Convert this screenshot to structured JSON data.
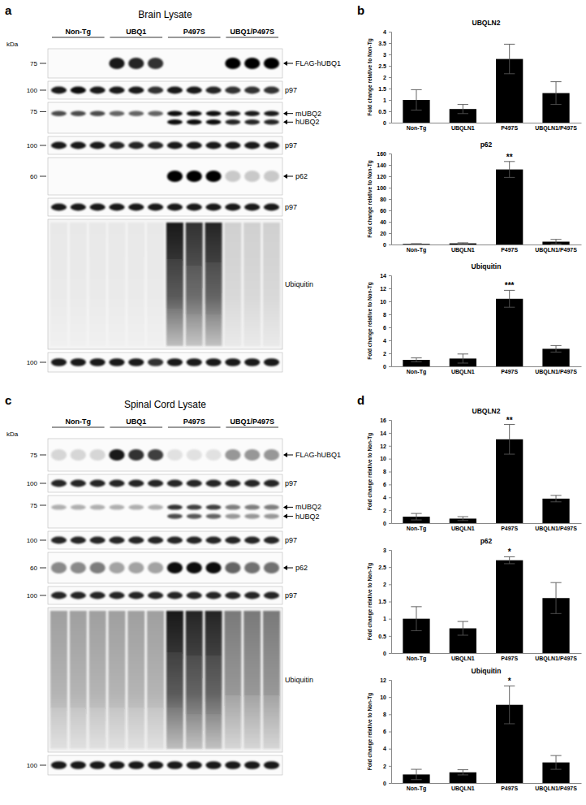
{
  "chart_data": [
    {
      "type": "bar",
      "title": "UBQLN2",
      "categories": [
        "Non-Tg",
        "UBQLN1",
        "P497S",
        "UBQLN1/P497S"
      ],
      "values": [
        1.0,
        0.6,
        2.8,
        1.3
      ],
      "errors": [
        0.45,
        0.2,
        0.65,
        0.5
      ],
      "color": "#000000",
      "ylim": [
        0,
        4
      ],
      "yticks": [
        0,
        0.5,
        1,
        1.5,
        2,
        2.5,
        3,
        3.5,
        4
      ],
      "y_label": "Fold change relative to Non-Tg"
    },
    {
      "type": "bar",
      "title": "p62",
      "categories": [
        "Non-Tg",
        "UBQLN1",
        "P497S",
        "UBQLN1/P497S"
      ],
      "values": [
        1,
        2,
        132,
        5
      ],
      "errors": [
        0.5,
        1,
        14,
        4
      ],
      "color": "#000000",
      "ylim": [
        0,
        160
      ],
      "yticks": [
        0,
        20,
        40,
        60,
        80,
        100,
        120,
        140,
        160
      ],
      "y_label": "Fold change relative to Non-Tg",
      "annotations": [
        {
          "x": "P497S",
          "text": "**"
        }
      ]
    },
    {
      "type": "bar",
      "title": "Ubiquitin",
      "categories": [
        "Non-Tg",
        "UBQLN1",
        "P497S",
        "UBQLN1/P497S"
      ],
      "values": [
        1.0,
        1.2,
        10.4,
        2.7
      ],
      "errors": [
        0.3,
        0.7,
        1.3,
        0.5
      ],
      "color": "#000000",
      "ylim": [
        0,
        14
      ],
      "yticks": [
        0,
        2,
        4,
        6,
        8,
        10,
        12,
        14
      ],
      "y_label": "Fold change relative to Non-Tg",
      "annotations": [
        {
          "x": "P497S",
          "text": "***"
        }
      ]
    },
    {
      "type": "bar",
      "title": "UBQLN2",
      "categories": [
        "Non-Tg",
        "UBQLN1",
        "P497S",
        "UBQLN1/P497S"
      ],
      "values": [
        1.0,
        0.7,
        13,
        3.8
      ],
      "errors": [
        0.5,
        0.3,
        2.3,
        0.5
      ],
      "color": "#000000",
      "ylim": [
        0,
        16
      ],
      "yticks": [
        0,
        2,
        4,
        6,
        8,
        10,
        12,
        14,
        16
      ],
      "y_label": "Fold change relative to Non-Tg",
      "annotations": [
        {
          "x": "P497S",
          "text": "**"
        }
      ]
    },
    {
      "type": "bar",
      "title": "p62",
      "categories": [
        "Non-Tg",
        "UBQLN1",
        "P497S",
        "UBQLN1/P497S"
      ],
      "values": [
        1.0,
        0.72,
        2.7,
        1.6
      ],
      "errors": [
        0.35,
        0.2,
        0.1,
        0.45
      ],
      "color": "#000000",
      "ylim": [
        0,
        3
      ],
      "yticks": [
        0,
        0.5,
        1,
        1.5,
        2,
        2.5,
        3
      ],
      "y_label": "Fold change relative to Non-Tg",
      "annotations": [
        {
          "x": "P497S",
          "text": "*"
        }
      ]
    },
    {
      "type": "bar",
      "title": "Ubiquitin",
      "categories": [
        "Non-Tg",
        "UBQLN1",
        "P497S",
        "UBQLN1/P497S"
      ],
      "values": [
        1.0,
        1.25,
        9.1,
        2.4
      ],
      "errors": [
        0.6,
        0.3,
        2.2,
        0.8
      ],
      "color": "#000000",
      "ylim": [
        0,
        12
      ],
      "yticks": [
        0,
        2,
        4,
        6,
        8,
        10,
        12
      ],
      "y_label": "Fold change relative to Non-Tg",
      "annotations": [
        {
          "x": "P497S",
          "text": "*"
        }
      ]
    }
  ],
  "panel_labels": [
    "a",
    "b",
    "c",
    "d"
  ],
  "blots": [
    {
      "title": "Brain Lysate",
      "unit": "kDa",
      "groups": [
        "Non-Tg",
        "UBQ1",
        "P497S",
        "UBQ1/P497S"
      ],
      "rows": [
        {
          "type": "band",
          "marker": 75,
          "label": "FLAG-hUBQ1",
          "bands": [
            0,
            0,
            0,
            0.9,
            0.85,
            0.8,
            0,
            0,
            0,
            1,
            1,
            1
          ]
        },
        {
          "type": "band",
          "marker": 100,
          "label": "p97",
          "bands": [
            0.9,
            0.95,
            0.9,
            0.9,
            0.9,
            0.8,
            0.9,
            0.9,
            0.85,
            0.8,
            0.8,
            0.8
          ]
        },
        {
          "type": "doublet",
          "marker": 75,
          "labels": [
            "mUBQ2",
            "hUBQ2"
          ],
          "bands": [
            [
              0.7,
              0.7,
              0.7,
              0.6,
              0.6,
              0.6,
              0.95,
              0.95,
              0.95,
              0.9,
              0.9,
              0.9
            ],
            [
              0,
              0,
              0,
              0,
              0,
              0,
              0.95,
              0.95,
              0.95,
              0.85,
              0.85,
              0.85
            ]
          ]
        },
        {
          "type": "band",
          "marker": 100,
          "label": "p97",
          "bands": [
            0.9,
            0.9,
            0.9,
            0.85,
            0.85,
            0.85,
            0.9,
            0.9,
            0.9,
            0.9,
            0.9,
            0.9
          ]
        },
        {
          "type": "band",
          "marker": 60,
          "label": "p62",
          "bands": [
            0,
            0,
            0,
            0,
            0,
            0,
            1,
            1,
            1,
            0.2,
            0.2,
            0.2
          ]
        },
        {
          "type": "band",
          "label": "p97",
          "bands": [
            0.9,
            0.9,
            0.9,
            0.9,
            0.9,
            0.9,
            0.9,
            0.9,
            0.9,
            0.9,
            0.9,
            0.9
          ]
        },
        {
          "type": "smear",
          "label": "Ubiquitin",
          "bands": [
            0.05,
            0.05,
            0.05,
            0.05,
            0.05,
            0.05,
            0.9,
            0.8,
            0.85,
            0.15,
            0.15,
            0.15
          ]
        },
        {
          "type": "band",
          "marker": 100,
          "bands": [
            0.9,
            0.9,
            0.9,
            0.9,
            0.9,
            0.8,
            0.9,
            0.9,
            0.9,
            0.9,
            0.9,
            0.9
          ]
        }
      ]
    },
    {
      "title": "Spinal Cord Lysate",
      "unit": "kDa",
      "groups": [
        "Non-Tg",
        "UBQ1",
        "P497S",
        "UBQ1/P497S"
      ],
      "rows": [
        {
          "type": "band",
          "marker": 75,
          "label": "FLAG-hUBQ1",
          "bands": [
            0.15,
            0.15,
            0.15,
            0.9,
            0.8,
            0.75,
            0.1,
            0.1,
            0.1,
            0.4,
            0.4,
            0.4
          ]
        },
        {
          "type": "band",
          "marker": 100,
          "label": "p97",
          "bands": [
            0.85,
            0.85,
            0.85,
            0.85,
            0.85,
            0.85,
            0.85,
            0.85,
            0.85,
            0.85,
            0.85,
            0.85
          ]
        },
        {
          "type": "doublet",
          "marker": 75,
          "labels": [
            "mUBQ2",
            "hUBQ2"
          ],
          "bands": [
            [
              0.3,
              0.3,
              0.3,
              0.3,
              0.3,
              0.3,
              0.8,
              0.75,
              0.75,
              0.5,
              0.5,
              0.5
            ],
            [
              0,
              0,
              0,
              0,
              0,
              0,
              0.7,
              0.65,
              0.6,
              0.4,
              0.4,
              0.4
            ]
          ]
        },
        {
          "type": "band",
          "marker": 100,
          "label": "p97",
          "bands": [
            0.85,
            0.85,
            0.85,
            0.85,
            0.85,
            0.85,
            0.85,
            0.85,
            0.85,
            0.85,
            0.85,
            0.85
          ]
        },
        {
          "type": "band",
          "marker": 60,
          "label": "p62",
          "bands": [
            0.45,
            0.45,
            0.5,
            0.35,
            0.35,
            0.35,
            0.95,
            0.95,
            0.95,
            0.6,
            0.55,
            0.55
          ]
        },
        {
          "type": "band",
          "marker": 100,
          "label": "p97",
          "bands": [
            0.85,
            0.85,
            0.85,
            0.85,
            0.85,
            0.85,
            0.85,
            0.85,
            0.85,
            0.85,
            0.85,
            0.85
          ]
        },
        {
          "type": "smear",
          "label": "Ubiquitin",
          "bands": [
            0.35,
            0.35,
            0.35,
            0.35,
            0.35,
            0.35,
            0.9,
            0.85,
            0.85,
            0.5,
            0.5,
            0.5
          ]
        },
        {
          "type": "band",
          "marker": 100,
          "bands": [
            0.9,
            0.9,
            0.9,
            0.9,
            0.9,
            0.9,
            0.9,
            0.9,
            0.9,
            0.9,
            0.9,
            0.9
          ]
        }
      ]
    }
  ]
}
